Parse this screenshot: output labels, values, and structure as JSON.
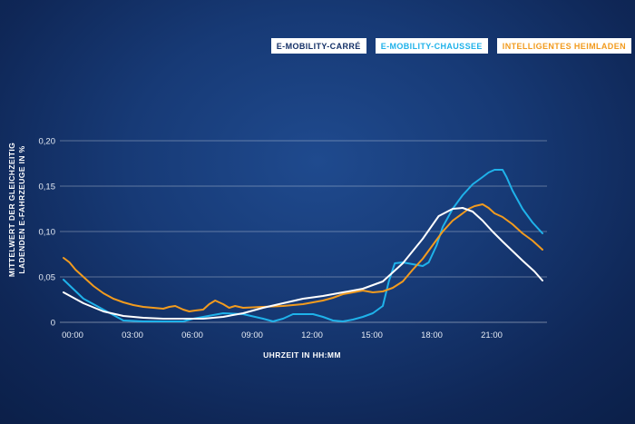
{
  "chart_data": {
    "type": "line",
    "xlabel": "UHRZEIT IN HH:MM",
    "ylabel_lines": [
      "MITTELWERT DER GLEICHZEITIG",
      "LADENDEN E-FAHRZEUGE IN %"
    ],
    "x_tick_labels": [
      "00:00",
      "03:00",
      "06:00",
      "09:00",
      "12:00",
      "15:00",
      "18:00",
      "21:00"
    ],
    "y_tick_labels": [
      "0",
      "0,05",
      "0,10",
      "0,15",
      "0,20"
    ],
    "y_ticks": [
      0,
      0.05,
      0.1,
      0.15,
      0.2
    ],
    "xlim": [
      0,
      24
    ],
    "ylim": [
      0,
      0.2
    ],
    "grid": true,
    "legend_position": "top-right",
    "series": [
      {
        "name": "E-MOBILITY-CARRÉ",
        "color": "#ffffff",
        "points": [
          [
            0,
            0.033
          ],
          [
            1,
            0.021
          ],
          [
            2,
            0.012
          ],
          [
            3,
            0.007
          ],
          [
            4,
            0.005
          ],
          [
            5,
            0.004
          ],
          [
            6,
            0.004
          ],
          [
            7,
            0.004
          ],
          [
            8,
            0.006
          ],
          [
            9,
            0.01
          ],
          [
            10,
            0.016
          ],
          [
            11,
            0.021
          ],
          [
            12,
            0.026
          ],
          [
            13,
            0.029
          ],
          [
            14,
            0.033
          ],
          [
            15,
            0.037
          ],
          [
            16,
            0.045
          ],
          [
            17,
            0.065
          ],
          [
            18,
            0.092
          ],
          [
            18.8,
            0.117
          ],
          [
            19.5,
            0.125
          ],
          [
            20,
            0.126
          ],
          [
            20.5,
            0.122
          ],
          [
            21,
            0.112
          ],
          [
            21.5,
            0.1
          ],
          [
            22,
            0.089
          ],
          [
            23,
            0.068
          ],
          [
            23.6,
            0.056
          ],
          [
            24,
            0.046
          ]
        ]
      },
      {
        "name": "E-MOBILITY-CHAUSSEE",
        "color": "#1fb2ea",
        "points": [
          [
            0,
            0.047
          ],
          [
            1,
            0.026
          ],
          [
            2,
            0.014
          ],
          [
            3,
            0.002
          ],
          [
            4,
            0.001
          ],
          [
            5,
            0.001
          ],
          [
            6,
            0.001
          ],
          [
            6.5,
            0.004
          ],
          [
            7,
            0.006
          ],
          [
            8,
            0.01
          ],
          [
            9,
            0.009
          ],
          [
            10,
            0.004
          ],
          [
            10.5,
            0.001
          ],
          [
            11,
            0.004
          ],
          [
            11.5,
            0.009
          ],
          [
            12,
            0.009
          ],
          [
            12.5,
            0.009
          ],
          [
            13,
            0.006
          ],
          [
            13.5,
            0.002
          ],
          [
            14,
            0.001
          ],
          [
            14.5,
            0.003
          ],
          [
            15,
            0.006
          ],
          [
            15.5,
            0.01
          ],
          [
            16,
            0.018
          ],
          [
            16.3,
            0.045
          ],
          [
            16.6,
            0.065
          ],
          [
            17,
            0.066
          ],
          [
            17.5,
            0.064
          ],
          [
            18,
            0.062
          ],
          [
            18.3,
            0.066
          ],
          [
            18.7,
            0.085
          ],
          [
            19,
            0.105
          ],
          [
            19.5,
            0.125
          ],
          [
            20,
            0.14
          ],
          [
            20.5,
            0.152
          ],
          [
            21,
            0.16
          ],
          [
            21.3,
            0.165
          ],
          [
            21.6,
            0.168
          ],
          [
            22,
            0.168
          ],
          [
            22.2,
            0.16
          ],
          [
            22.5,
            0.145
          ],
          [
            23,
            0.125
          ],
          [
            23.5,
            0.11
          ],
          [
            24,
            0.098
          ]
        ]
      },
      {
        "name": "INTELLIGENTES HEIMLADEN",
        "color": "#f29b1e",
        "points": [
          [
            0,
            0.071
          ],
          [
            0.3,
            0.066
          ],
          [
            0.6,
            0.058
          ],
          [
            1,
            0.05
          ],
          [
            1.5,
            0.04
          ],
          [
            2,
            0.032
          ],
          [
            2.5,
            0.026
          ],
          [
            3,
            0.022
          ],
          [
            3.5,
            0.019
          ],
          [
            4,
            0.017
          ],
          [
            4.5,
            0.016
          ],
          [
            5,
            0.015
          ],
          [
            5.3,
            0.017
          ],
          [
            5.6,
            0.018
          ],
          [
            6,
            0.014
          ],
          [
            6.3,
            0.012
          ],
          [
            6.6,
            0.013
          ],
          [
            7,
            0.014
          ],
          [
            7.3,
            0.02
          ],
          [
            7.6,
            0.024
          ],
          [
            8,
            0.02
          ],
          [
            8.3,
            0.016
          ],
          [
            8.6,
            0.018
          ],
          [
            9,
            0.016
          ],
          [
            10,
            0.017
          ],
          [
            11,
            0.018
          ],
          [
            12,
            0.02
          ],
          [
            12.5,
            0.022
          ],
          [
            13,
            0.024
          ],
          [
            13.5,
            0.027
          ],
          [
            14,
            0.031
          ],
          [
            14.5,
            0.033
          ],
          [
            15,
            0.035
          ],
          [
            15.5,
            0.033
          ],
          [
            16,
            0.034
          ],
          [
            16.5,
            0.038
          ],
          [
            17,
            0.045
          ],
          [
            17.5,
            0.058
          ],
          [
            18,
            0.07
          ],
          [
            18.5,
            0.085
          ],
          [
            19,
            0.1
          ],
          [
            19.5,
            0.112
          ],
          [
            20,
            0.12
          ],
          [
            20.3,
            0.125
          ],
          [
            20.6,
            0.128
          ],
          [
            21,
            0.13
          ],
          [
            21.3,
            0.126
          ],
          [
            21.6,
            0.12
          ],
          [
            22,
            0.116
          ],
          [
            22.5,
            0.108
          ],
          [
            23,
            0.098
          ],
          [
            23.5,
            0.09
          ],
          [
            24,
            0.08
          ]
        ]
      }
    ]
  }
}
